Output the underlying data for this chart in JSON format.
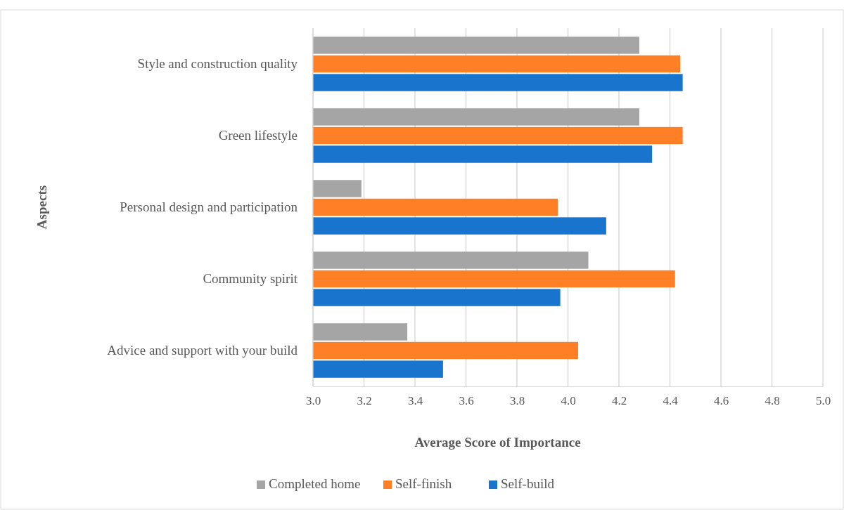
{
  "chart_data": {
    "type": "bar",
    "orientation": "horizontal",
    "xlabel": "Average Score of Importance",
    "ylabel": "Aspects",
    "categories": [
      "Style and construction quality",
      "Green lifestyle",
      "Personal design and participation",
      "Community spirit",
      "Advice and support with your build"
    ],
    "series": [
      {
        "name": "Completed home",
        "color": "#a5a5a5",
        "values": [
          4.28,
          4.28,
          3.19,
          4.08,
          3.37
        ]
      },
      {
        "name": "Self-finish",
        "color": "#ff7f27",
        "values": [
          4.44,
          4.45,
          3.96,
          4.42,
          4.04
        ]
      },
      {
        "name": "Self-build",
        "color": "#1874cd",
        "values": [
          4.45,
          4.33,
          4.15,
          3.97,
          3.51
        ]
      }
    ],
    "xlim": [
      3.0,
      5.0
    ],
    "xticks": [
      {
        "value": 3,
        "label": "3.0"
      },
      {
        "value": 3.2,
        "label": "3.2"
      },
      {
        "value": 3.4,
        "label": "3.4"
      },
      {
        "value": 3.6,
        "label": "3.6"
      },
      {
        "value": 3.8,
        "label": "3.8"
      },
      {
        "value": 4,
        "label": "4.0"
      },
      {
        "value": 4.2,
        "label": "4.2"
      },
      {
        "value": 4.4,
        "label": "4.4"
      },
      {
        "value": 4.6,
        "label": "4.6"
      },
      {
        "value": 4.8,
        "label": "4.8"
      },
      {
        "value": 5,
        "label": "5.0"
      }
    ],
    "grid": "x",
    "legend": "bottom"
  }
}
